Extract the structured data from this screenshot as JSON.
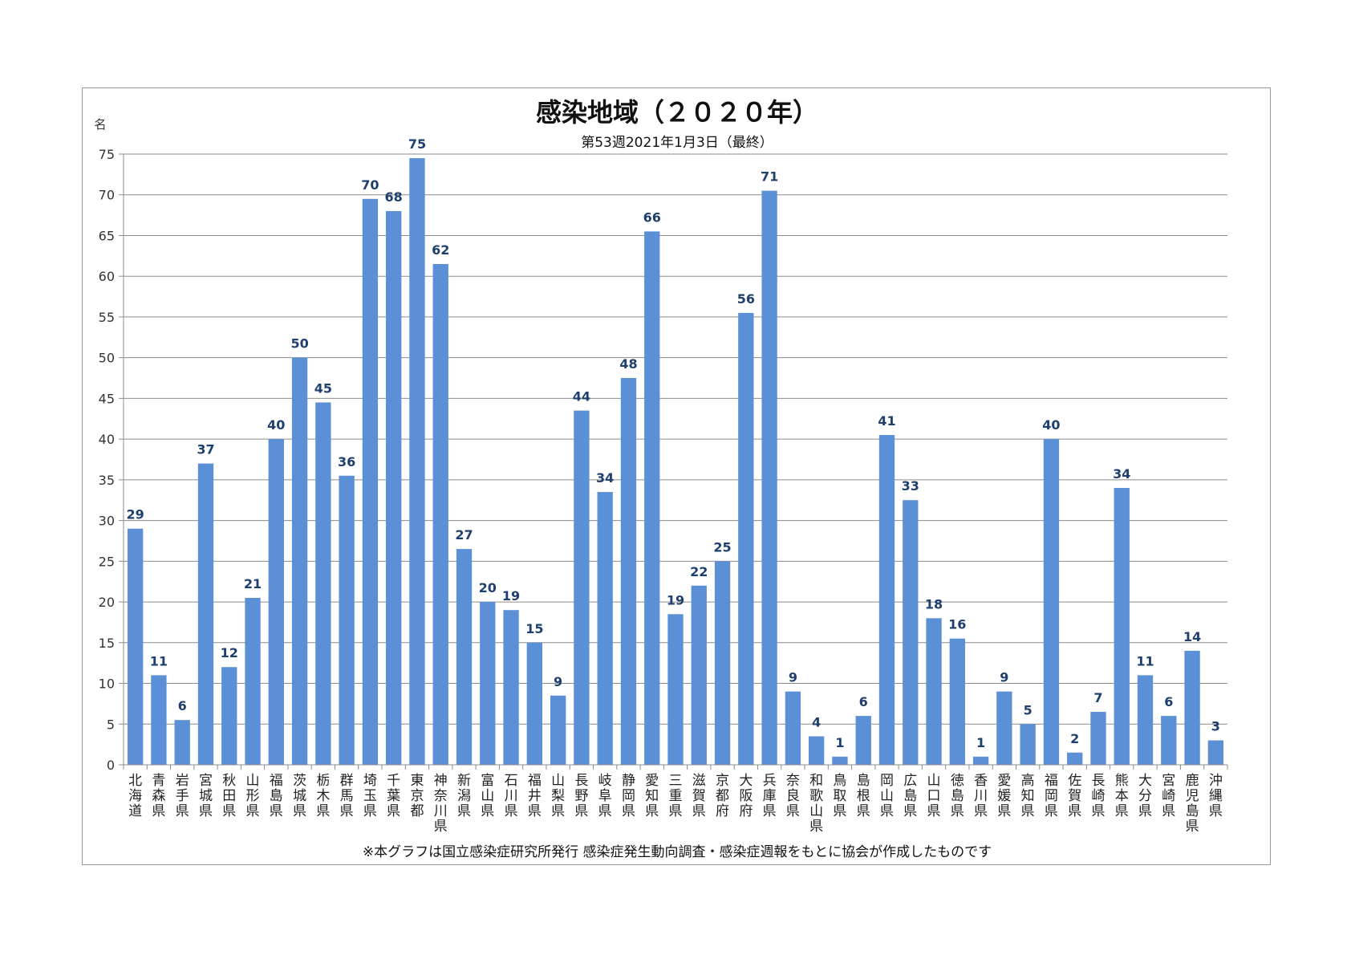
{
  "chart_data": {
    "type": "bar",
    "title": "感染地域（２０２０年）",
    "subtitle": "第53週2021年1月3日（最終）",
    "ylabel": "名",
    "xlabel": "",
    "ylim": [
      0,
      75
    ],
    "yticks": [
      0,
      5,
      10,
      15,
      20,
      25,
      30,
      35,
      40,
      45,
      50,
      55,
      60,
      65,
      70,
      75
    ],
    "grid": true,
    "note": "※本グラフは国立感染症研究所発行 感染症発生動向調査・感染症週報をもとに協会が作成したものです",
    "categories": [
      "北海道",
      "青森県",
      "岩手県",
      "宮城県",
      "秋田県",
      "山形県",
      "福島県",
      "茨城県",
      "栃木県",
      "群馬県",
      "埼玉県",
      "千葉県",
      "東京都",
      "神奈川県",
      "新潟県",
      "富山県",
      "石川県",
      "福井県",
      "山梨県",
      "長野県",
      "岐阜県",
      "静岡県",
      "愛知県",
      "三重県",
      "滋賀県",
      "京都府",
      "大阪府",
      "兵庫県",
      "奈良県",
      "和歌山県",
      "鳥取県",
      "島根県",
      "岡山県",
      "広島県",
      "山口県",
      "徳島県",
      "香川県",
      "愛媛県",
      "高知県",
      "福岡県",
      "佐賀県",
      "長崎県",
      "熊本県",
      "大分県",
      "宮崎県",
      "鹿児島県",
      "沖縄県"
    ],
    "values": [
      29,
      11,
      5.5,
      37,
      12,
      20.5,
      40,
      50,
      44.5,
      35.5,
      69.5,
      68,
      74.5,
      61.5,
      26.5,
      20,
      19,
      15,
      8.5,
      43.5,
      33.5,
      47.5,
      65.5,
      18.5,
      22,
      25,
      55.5,
      70.5,
      9,
      3.5,
      1,
      6,
      40.5,
      32.5,
      18,
      15.5,
      1,
      9,
      5,
      40,
      1.5,
      6.5,
      34,
      11,
      6,
      14,
      3
    ],
    "value_labels": [
      "29",
      "11",
      "6",
      "37",
      "12",
      "21",
      "40",
      "50",
      "45",
      "36",
      "70",
      "68",
      "75",
      "62",
      "27",
      "20",
      "19",
      "15",
      "9",
      "44",
      "34",
      "48",
      "66",
      "19",
      "22",
      "25",
      "56",
      "71",
      "9",
      "4",
      "1",
      "6",
      "41",
      "33",
      "18",
      "16",
      "1",
      "9",
      "5",
      "40",
      "2",
      "7",
      "34",
      "11",
      "6",
      "14",
      "3"
    ],
    "colors": {
      "bar": "#5b8fd6",
      "value_label": "#1f3f6e",
      "grid": "#8c8c8c",
      "axis": "#8c8c8c"
    }
  }
}
